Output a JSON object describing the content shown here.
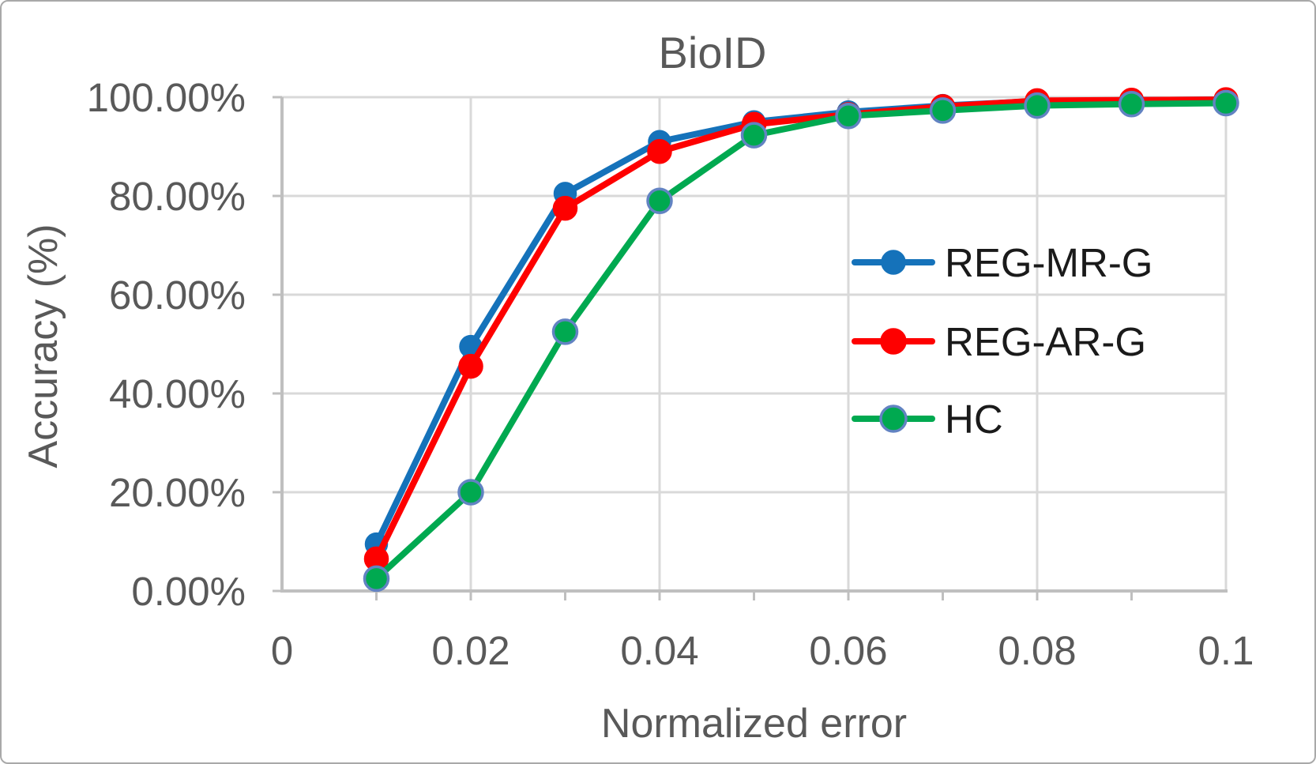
{
  "chart_data": {
    "type": "line",
    "title": "BioID",
    "xlabel": "Normalized error",
    "ylabel": "Accuracy (%)",
    "x": [
      0.01,
      0.02,
      0.03,
      0.04,
      0.05,
      0.06,
      0.07,
      0.08,
      0.09,
      0.1
    ],
    "series": [
      {
        "name": "REG-MR-G",
        "color": "#1572BA",
        "marker_border": "#1572BA",
        "marker_radius": 13,
        "values": [
          9.5,
          49.5,
          80.5,
          91.0,
          95.0,
          97.0,
          98.3,
          99.2,
          99.4,
          99.5
        ]
      },
      {
        "name": "REG-AR-G",
        "color": "#FE0000",
        "marker_border": "#FE0000",
        "marker_radius": 14,
        "values": [
          6.5,
          45.5,
          77.5,
          89.0,
          94.5,
          96.5,
          98.1,
          99.3,
          99.4,
          99.5
        ]
      },
      {
        "name": "HC",
        "color": "#00A950",
        "marker_border": "#6283C2",
        "marker_radius": 15,
        "values": [
          2.5,
          20.0,
          52.5,
          79.0,
          92.3,
          96.2,
          97.3,
          98.3,
          98.6,
          98.8
        ]
      }
    ],
    "x_ticks": [
      "0",
      "0.02",
      "0.04",
      "0.06",
      "0.08",
      "0.1"
    ],
    "x_tick_values": [
      0,
      0.02,
      0.04,
      0.06,
      0.08,
      0.1
    ],
    "x_minor_tick_step": 0.01,
    "y_ticks": [
      "0.00%",
      "20.00%",
      "40.00%",
      "60.00%",
      "80.00%",
      "100.00%"
    ],
    "y_tick_values": [
      0,
      20,
      40,
      60,
      80,
      100
    ],
    "xlim": [
      0,
      0.1
    ],
    "ylim": [
      0,
      100
    ],
    "grid": true,
    "legend_position": "inside-right",
    "colors": {
      "gridline": "#D9D9D9",
      "axis_line": "#BFBFBF",
      "axis_text": "#595959",
      "legend_text": "#1A1A1A",
      "background": "#FFFFFF"
    }
  }
}
